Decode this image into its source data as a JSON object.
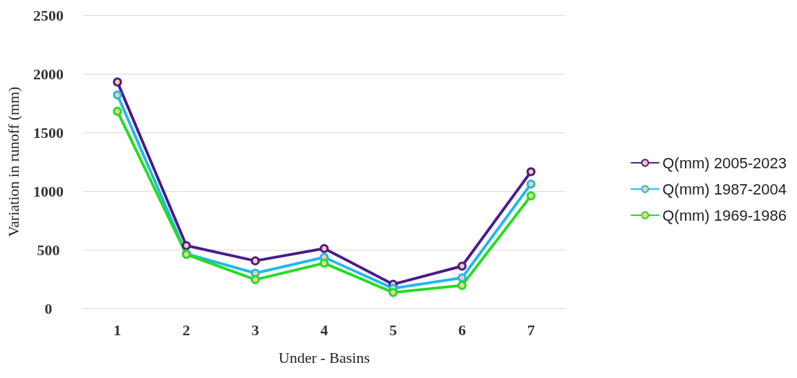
{
  "chart_data": {
    "type": "line",
    "xlabel": "Under - Basins",
    "ylabel": "Variation in runoff (mm)",
    "categories": [
      "1",
      "2",
      "3",
      "4",
      "5",
      "6",
      "7"
    ],
    "series": [
      {
        "name": "Q(mm) 2005-2023",
        "color": "#4b1a8c",
        "values": [
          1930,
          535,
          405,
          510,
          205,
          360,
          1165
        ]
      },
      {
        "name": "Q(mm) 1987-2004",
        "color": "#22b8ec",
        "values": [
          1820,
          465,
          300,
          435,
          170,
          260,
          1060
        ]
      },
      {
        "name": "Q(mm) 1969-1986",
        "color": "#22dd22",
        "values": [
          1680,
          460,
          245,
          385,
          135,
          195,
          960
        ]
      }
    ],
    "ylim": [
      0,
      2500
    ],
    "yticks": [
      0,
      500,
      1000,
      1500,
      2000,
      2500
    ],
    "grid": "y",
    "legend": "right",
    "marker": "circle",
    "line_style": "solid"
  }
}
